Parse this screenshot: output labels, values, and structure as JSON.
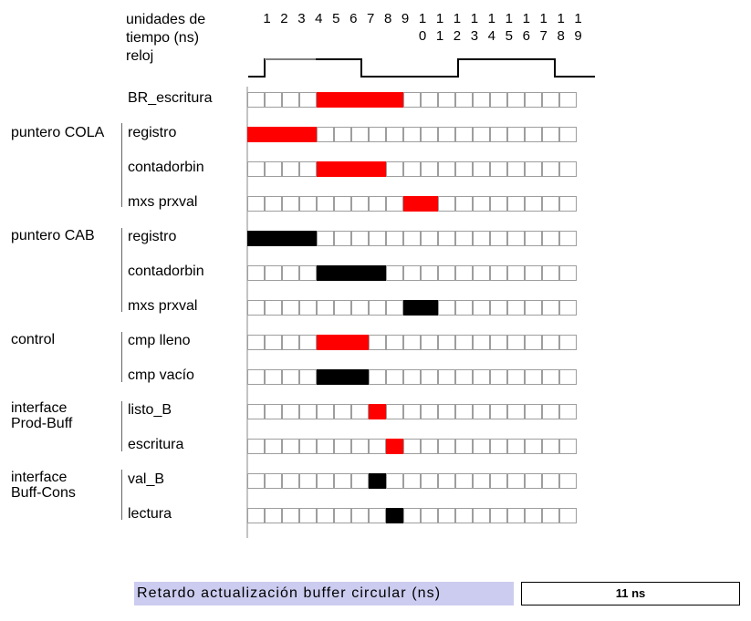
{
  "header": {
    "time_label_1": "unidades de",
    "time_label_2": "tiempo (ns)",
    "clock_label": "reloj"
  },
  "time_units": [
    [
      "1",
      ""
    ],
    [
      "2",
      ""
    ],
    [
      "3",
      ""
    ],
    [
      "4",
      ""
    ],
    [
      "5",
      ""
    ],
    [
      "6",
      ""
    ],
    [
      "7",
      ""
    ],
    [
      "8",
      ""
    ],
    [
      "9",
      ""
    ],
    [
      "1",
      "0"
    ],
    [
      "1",
      "1"
    ],
    [
      "1",
      "2"
    ],
    [
      "1",
      "3"
    ],
    [
      "1",
      "4"
    ],
    [
      "1",
      "5"
    ],
    [
      "1",
      "6"
    ],
    [
      "1",
      "7"
    ],
    [
      "1",
      "8"
    ],
    [
      "1",
      "9"
    ]
  ],
  "groups": [
    {
      "label": "puntero COLA"
    },
    {
      "label": "puntero CAB"
    },
    {
      "label": "control"
    },
    {
      "label": "interface\nProd-Buff"
    },
    {
      "label": "interface\nBuff-Cons"
    }
  ],
  "signals": [
    {
      "label": "BR_escritura",
      "color": "red",
      "active": [
        5,
        6,
        7,
        8,
        9
      ]
    },
    {
      "label": "registro",
      "color": "red",
      "active": [
        1,
        2,
        3,
        4
      ]
    },
    {
      "label": "contadorbin",
      "color": "red",
      "active": [
        5,
        6,
        7,
        8
      ]
    },
    {
      "label": "mxs prxval",
      "color": "red",
      "active": [
        10,
        11
      ]
    },
    {
      "label": "registro",
      "color": "black",
      "active": [
        1,
        2,
        3,
        4
      ]
    },
    {
      "label": "contadorbin",
      "color": "black",
      "active": [
        5,
        6,
        7,
        8
      ]
    },
    {
      "label": "mxs prxval",
      "color": "black",
      "active": [
        10,
        11
      ]
    },
    {
      "label": "cmp lleno",
      "color": "red",
      "active": [
        5,
        6,
        7
      ]
    },
    {
      "label": "cmp vacío",
      "color": "black",
      "active": [
        5,
        6,
        7
      ]
    },
    {
      "label": "listo_B",
      "color": "red",
      "active": [
        8
      ]
    },
    {
      "label": "escritura",
      "color": "red",
      "active": [
        9
      ]
    },
    {
      "label": "val_B",
      "color": "black",
      "active": [
        8
      ]
    },
    {
      "label": "lectura",
      "color": "black",
      "active": [
        9
      ]
    }
  ],
  "footer": {
    "label": "Retardo actualización buffer circular (ns)",
    "value": "11 ns"
  },
  "colors": {
    "red": "#ff0000",
    "black": "#000000",
    "footer_bg": "#ccccf0"
  }
}
